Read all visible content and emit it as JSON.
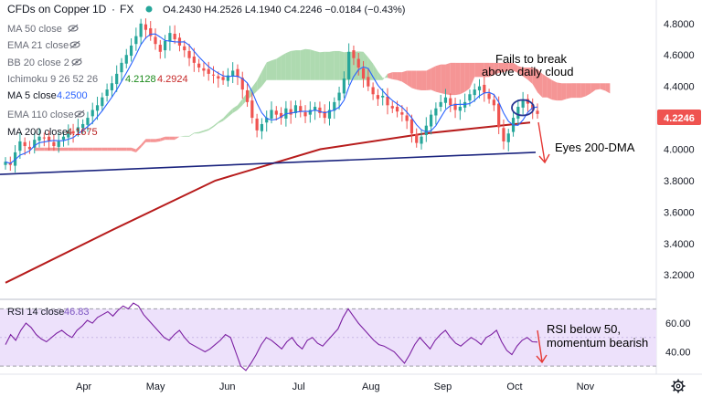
{
  "header": {
    "symbol": "CFDs on Copper",
    "interval": "1D",
    "source": "FX",
    "ohlc": "O4.2430 H4.2526 L4.1940 C4.2246 −0.0184 (−0.43%)"
  },
  "legend": [
    {
      "label": "MA 50 close",
      "value": "",
      "value2": "",
      "value_color": "#2962ff"
    },
    {
      "label": "EMA 21 close",
      "value": "",
      "value2": "",
      "value_color": "#2962ff"
    },
    {
      "label": "BB 20 close 2",
      "value": "",
      "value2": "",
      "value_color": "#2962ff"
    },
    {
      "label": "Ichimoku 9 26 52 26",
      "value": "4.2128",
      "value2": "4.2924",
      "value_color": "#1b8a1b",
      "value2_color": "#c62828"
    },
    {
      "label": "MA 5 close",
      "value": "4.2500",
      "value2": "",
      "value_color": "#2962ff"
    },
    {
      "label": "EMA 110 close",
      "value": "",
      "value2": "",
      "value_color": "#2962ff"
    },
    {
      "label": "MA 200 close",
      "value": "4.1675",
      "value2": "",
      "value_color": "#b71c1c"
    }
  ],
  "rsi": {
    "label": "RSI 14 close",
    "value": "46.83",
    "value_color": "#7e57c2",
    "upper": 70,
    "lower": 30
  },
  "annotations": {
    "cloud_line1": "Fails to break",
    "cloud_line2": "above daily cloud",
    "dma": "Eyes 200-DMA",
    "rsi_line1": "RSI below 50,",
    "rsi_line2": "momentum bearish"
  },
  "last_price": {
    "value": "4.2246",
    "color": "#ef5350"
  },
  "colors": {
    "up": "#26a69a",
    "down": "#ef5350",
    "ma5": "#2962ff",
    "ma200": "#b71c1c",
    "cloud_green": "#a5d6a7",
    "cloud_red": "#f48a8a",
    "trendline": "#1a237e",
    "rsi_line": "#7b1fa2",
    "rsi_band": "#ede1fb",
    "arrow": "#e53935"
  },
  "chart_data": [
    {
      "type": "candlestick",
      "title": "CFDs on Copper · 1D · FX",
      "y_axis": {
        "ticks": [
          "4.8000",
          "4.6000",
          "4.4000",
          "4.2000",
          "4.0000",
          "3.8000",
          "3.6000",
          "3.4000",
          "3.2000"
        ],
        "range": [
          3.05,
          4.95
        ]
      },
      "x_axis": {
        "ticks": [
          "Apr",
          "May",
          "Jun",
          "Jul",
          "Aug",
          "Sep",
          "Oct",
          "Nov"
        ]
      },
      "grid": false,
      "series": [
        {
          "name": "Price",
          "kind": "candles",
          "close_path": [
            3.92,
            3.9,
            3.98,
            4.05,
            4.02,
            4.0,
            4.06,
            4.08,
            4.07,
            4.05,
            4.02,
            4.05,
            4.08,
            4.12,
            4.1,
            4.14,
            4.16,
            4.2,
            4.25,
            4.28,
            4.33,
            4.38,
            4.42,
            4.48,
            4.55,
            4.6,
            4.66,
            4.72,
            4.8,
            4.76,
            4.72,
            4.67,
            4.62,
            4.69,
            4.74,
            4.7,
            4.66,
            4.63,
            4.58,
            4.55,
            4.52,
            4.5,
            4.48,
            4.47,
            4.45,
            4.44,
            4.47,
            4.5,
            4.46,
            4.38,
            4.3,
            4.2,
            4.12,
            4.16,
            4.2,
            4.25,
            4.22,
            4.2,
            4.26,
            4.22,
            4.28,
            4.24,
            4.21,
            4.25,
            4.27,
            4.23,
            4.2,
            4.25,
            4.3,
            4.36,
            4.45,
            4.62,
            4.58,
            4.52,
            4.45,
            4.4,
            4.35,
            4.32,
            4.34,
            4.28,
            4.26,
            4.24,
            4.22,
            4.18,
            4.1,
            4.04,
            4.08,
            4.15,
            4.22,
            4.26,
            4.3,
            4.33,
            4.28,
            4.25,
            4.27,
            4.3,
            4.35,
            4.38,
            4.4,
            4.36,
            4.32,
            4.28,
            4.14,
            4.05,
            4.1,
            4.2,
            4.27,
            4.31,
            4.29,
            4.25,
            4.2246
          ]
        },
        {
          "name": "MA 5 close",
          "kind": "line",
          "last": 4.25
        },
        {
          "name": "MA 200 close",
          "kind": "line",
          "x": [
            0,
            0.2,
            0.4,
            0.6,
            0.8,
            1.0
          ],
          "values": [
            3.15,
            3.48,
            3.8,
            4.0,
            4.1,
            4.17
          ]
        },
        {
          "name": "Trendline",
          "kind": "line",
          "values": [
            3.84,
            3.98
          ]
        },
        {
          "name": "Ichimoku cloud",
          "kind": "area",
          "last_a": 4.2128,
          "last_b": 4.2924
        }
      ]
    },
    {
      "type": "line",
      "title": "RSI 14 close",
      "y_axis": {
        "ticks": [
          "60.00",
          "40.00"
        ],
        "range": [
          25,
          76
        ]
      },
      "bands": [
        30,
        70
      ],
      "series": [
        {
          "name": "RSI 14 close",
          "values": [
            45,
            52,
            48,
            55,
            60,
            57,
            52,
            49,
            47,
            50,
            53,
            55,
            52,
            50,
            55,
            58,
            62,
            60,
            64,
            66,
            68,
            65,
            69,
            72,
            70,
            74,
            72,
            66,
            62,
            58,
            54,
            50,
            48,
            52,
            55,
            50,
            46,
            44,
            42,
            40,
            42,
            45,
            48,
            52,
            50,
            40,
            30,
            27,
            32,
            38,
            45,
            50,
            48,
            45,
            42,
            47,
            50,
            45,
            42,
            48,
            50,
            46,
            44,
            48,
            52,
            56,
            64,
            70,
            65,
            60,
            56,
            52,
            48,
            45,
            44,
            42,
            40,
            36,
            32,
            38,
            45,
            50,
            46,
            42,
            48,
            52,
            55,
            50,
            46,
            44,
            47,
            50,
            48,
            45,
            50,
            52,
            55,
            47,
            41,
            38,
            44,
            48,
            50,
            47,
            46.83
          ]
        }
      ]
    }
  ]
}
